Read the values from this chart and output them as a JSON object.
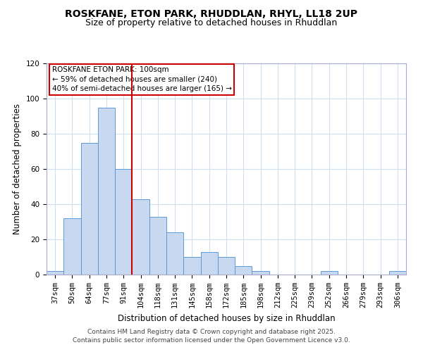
{
  "title": "ROSKFANE, ETON PARK, RHUDDLAN, RHYL, LL18 2UP",
  "subtitle": "Size of property relative to detached houses in Rhuddlan",
  "xlabel": "Distribution of detached houses by size in Rhuddlan",
  "ylabel": "Number of detached properties",
  "bar_color": "#c8d8f0",
  "bar_edge_color": "#5b9bd5",
  "categories": [
    "37sqm",
    "50sqm",
    "64sqm",
    "77sqm",
    "91sqm",
    "104sqm",
    "118sqm",
    "131sqm",
    "145sqm",
    "158sqm",
    "172sqm",
    "185sqm",
    "198sqm",
    "212sqm",
    "225sqm",
    "239sqm",
    "252sqm",
    "266sqm",
    "279sqm",
    "293sqm",
    "306sqm"
  ],
  "values": [
    2,
    32,
    75,
    95,
    60,
    43,
    33,
    24,
    10,
    13,
    10,
    5,
    2,
    0,
    0,
    0,
    2,
    0,
    0,
    0,
    2
  ],
  "vline_color": "#cc0000",
  "annotation_title": "ROSKFANE ETON PARK: 100sqm",
  "annotation_line1": "← 59% of detached houses are smaller (240)",
  "annotation_line2": "40% of semi-detached houses are larger (165) →",
  "ylim": [
    0,
    120
  ],
  "yticks": [
    0,
    20,
    40,
    60,
    80,
    100,
    120
  ],
  "footer1": "Contains HM Land Registry data © Crown copyright and database right 2025.",
  "footer2": "Contains public sector information licensed under the Open Government Licence v3.0.",
  "title_fontsize": 10,
  "subtitle_fontsize": 9,
  "axis_label_fontsize": 8.5,
  "tick_fontsize": 7.5,
  "annotation_fontsize": 7.5,
  "footer_fontsize": 6.5,
  "grid_color": "#d0dff0"
}
